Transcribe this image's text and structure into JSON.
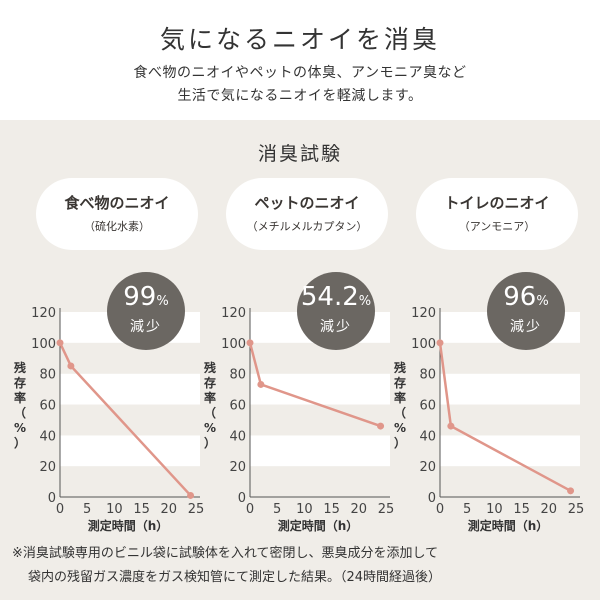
{
  "header": {
    "title": "気になるニオイを消臭",
    "subtitle_line1": "食べ物のニオイやペットの体臭、アンモニア臭など",
    "subtitle_line2": "生活で気になるニオイを軽減します。"
  },
  "section_title": "消臭試験",
  "tests": [
    {
      "title": "食べ物のニオイ",
      "sub": "（硫化水素）",
      "pct": "99",
      "pct_unit": "%",
      "reduction": "減少"
    },
    {
      "title": "ペットのニオイ",
      "sub": "（メチルメルカプタン）",
      "pct": "54.2",
      "pct_unit": "%",
      "reduction": "減少"
    },
    {
      "title": "トイレのニオイ",
      "sub": "（アンモニア）",
      "pct": "96",
      "pct_unit": "%",
      "reduction": "減少"
    }
  ],
  "footnote_line1": "※消臭試験専用のビニル袋に試験体を入れて密閉し、悪臭成分を添加して",
  "footnote_line2": "袋内の残留ガス濃度をガス検知管にて測定した結果。（24時間経過後）",
  "colors": {
    "line": "#e0968a",
    "badge": "#6b6762",
    "panel": "#f0ede8",
    "stripe": "#ffffff"
  },
  "chart_data": [
    {
      "type": "line",
      "series": [
        {
          "x": [
            0,
            2,
            24
          ],
          "y": [
            100,
            85,
            1
          ]
        }
      ],
      "xlabel": "測定時間（h）",
      "ylabel": "残存率（%）",
      "xticks": [
        0,
        5,
        10,
        15,
        20,
        25
      ],
      "yticks": [
        0,
        20,
        40,
        60,
        80,
        100,
        120
      ],
      "xlim": [
        0,
        25
      ],
      "ylim": [
        0,
        120
      ],
      "grid": "horizontal stripes"
    },
    {
      "type": "line",
      "series": [
        {
          "x": [
            0,
            2,
            24
          ],
          "y": [
            100,
            73,
            46
          ]
        }
      ],
      "xlabel": "測定時間（h）",
      "ylabel": "残存率（%）",
      "xticks": [
        0,
        5,
        10,
        15,
        20,
        25
      ],
      "yticks": [
        0,
        20,
        40,
        60,
        80,
        100,
        120
      ],
      "xlim": [
        0,
        25
      ],
      "ylim": [
        0,
        120
      ],
      "grid": "horizontal stripes"
    },
    {
      "type": "line",
      "series": [
        {
          "x": [
            0,
            2,
            24
          ],
          "y": [
            100,
            46,
            4
          ]
        }
      ],
      "xlabel": "測定時間（h）",
      "ylabel": "残存率（%）",
      "xticks": [
        0,
        5,
        10,
        15,
        20,
        25
      ],
      "yticks": [
        0,
        20,
        40,
        60,
        80,
        100,
        120
      ],
      "xlim": [
        0,
        25
      ],
      "ylim": [
        0,
        120
      ],
      "grid": "horizontal stripes"
    }
  ]
}
